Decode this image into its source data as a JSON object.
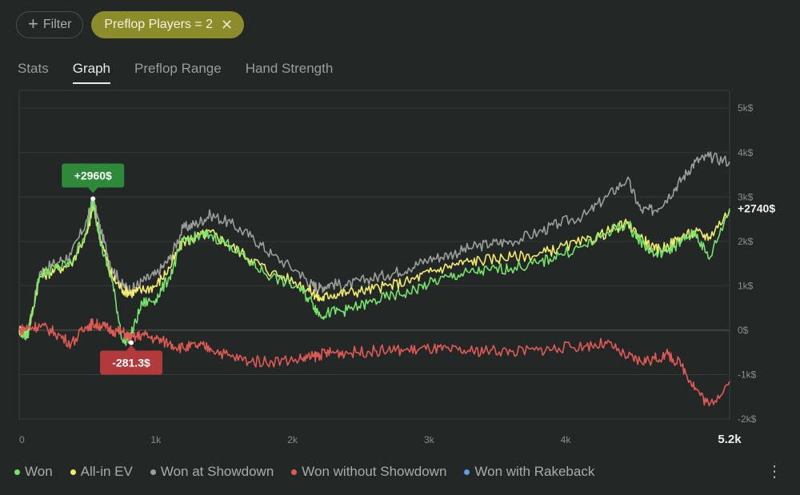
{
  "filters": {
    "filter_label": "Filter",
    "chip_label": "Preflop Players = 2"
  },
  "tabs": [
    {
      "label": "Stats",
      "active": false
    },
    {
      "label": "Graph",
      "active": true
    },
    {
      "label": "Preflop Range",
      "active": false
    },
    {
      "label": "Hand Strength",
      "active": false
    }
  ],
  "legend": [
    {
      "label": "Won",
      "color": "#76e36a"
    },
    {
      "label": "All-in EV",
      "color": "#f1ec6a"
    },
    {
      "label": "Won at Showdown",
      "color": "#9c9e9c"
    },
    {
      "label": "Won without Showdown",
      "color": "#e05a55"
    },
    {
      "label": "Won with Rakeback",
      "color": "#5aa0e0"
    }
  ],
  "chart_data": {
    "type": "line",
    "xlim": [
      0,
      5200
    ],
    "ylim": [
      -2000,
      5000
    ],
    "x_ticks": [
      {
        "v": 0,
        "label": "0"
      },
      {
        "v": 1000,
        "label": "1k"
      },
      {
        "v": 2000,
        "label": "2k"
      },
      {
        "v": 3000,
        "label": "3k"
      },
      {
        "v": 4000,
        "label": "4k"
      },
      {
        "v": 5200,
        "label": "5.2k"
      }
    ],
    "y_ticks": [
      {
        "v": 5000,
        "label": "5k$"
      },
      {
        "v": 4000,
        "label": "4k$"
      },
      {
        "v": 3000,
        "label": "3k$"
      },
      {
        "v": 2000,
        "label": "2k$"
      },
      {
        "v": 1000,
        "label": "1k$"
      },
      {
        "v": 0,
        "label": "0$"
      },
      {
        "v": -1000,
        "label": "-1k$"
      },
      {
        "v": -2000,
        "label": "-2k$"
      }
    ],
    "series": [
      {
        "name": "Won at Showdown",
        "color": "#9c9e9c",
        "x": [
          0,
          60,
          150,
          260,
          380,
          500,
          540,
          600,
          680,
          760,
          820,
          900,
          1000,
          1100,
          1200,
          1300,
          1400,
          1550,
          1700,
          1850,
          2050,
          2150,
          2200,
          2280,
          2400,
          2550,
          2700,
          2850,
          3000,
          3150,
          3300,
          3450,
          3600,
          3800,
          3950,
          4150,
          4300,
          4450,
          4550,
          4650,
          4750,
          4850,
          4950,
          5050,
          5200
        ],
        "y": [
          0,
          -150,
          1300,
          1500,
          1700,
          2500,
          2950,
          2200,
          1400,
          1000,
          900,
          1100,
          1250,
          1600,
          2300,
          2400,
          2600,
          2400,
          2100,
          1700,
          1300,
          1000,
          950,
          1050,
          1000,
          1150,
          1250,
          1400,
          1600,
          1700,
          1850,
          1950,
          2000,
          2200,
          2400,
          2600,
          3000,
          3400,
          2700,
          2700,
          3000,
          3400,
          3800,
          3900,
          3800
        ]
      },
      {
        "name": "All-in EV",
        "color": "#f1ec6a",
        "x": [
          0,
          60,
          150,
          260,
          380,
          500,
          540,
          600,
          680,
          760,
          820,
          900,
          1000,
          1100,
          1200,
          1300,
          1400,
          1550,
          1700,
          1850,
          2050,
          2150,
          2200,
          2280,
          2400,
          2550,
          2700,
          2850,
          3000,
          3150,
          3300,
          3450,
          3600,
          3800,
          3950,
          4150,
          4300,
          4450,
          4550,
          4650,
          4750,
          4850,
          4950,
          5050,
          5200
        ],
        "y": [
          0,
          -100,
          1200,
          1350,
          1500,
          2200,
          2800,
          2000,
          1200,
          900,
          850,
          900,
          1000,
          1400,
          2000,
          2100,
          2200,
          1900,
          1600,
          1300,
          1050,
          850,
          700,
          800,
          850,
          900,
          1000,
          1100,
          1300,
          1450,
          1550,
          1600,
          1650,
          1700,
          1850,
          2000,
          2200,
          2400,
          2100,
          1800,
          1900,
          2100,
          2200,
          2100,
          2700
        ]
      },
      {
        "name": "Won",
        "color": "#76e36a",
        "x": [
          0,
          60,
          150,
          260,
          380,
          500,
          540,
          600,
          680,
          760,
          820,
          900,
          1000,
          1100,
          1200,
          1300,
          1400,
          1550,
          1700,
          1850,
          2050,
          2150,
          2200,
          2280,
          2400,
          2550,
          2700,
          2850,
          3000,
          3150,
          3300,
          3450,
          3600,
          3800,
          3950,
          4150,
          4300,
          4450,
          4550,
          4650,
          4750,
          4850,
          4950,
          5050,
          5200
        ],
        "y": [
          0,
          -150,
          1250,
          1400,
          1500,
          2300,
          2960,
          1900,
          1100,
          -280,
          -100,
          600,
          700,
          1200,
          2000,
          2100,
          2150,
          1900,
          1500,
          1200,
          950,
          600,
          350,
          400,
          450,
          600,
          750,
          850,
          1050,
          1200,
          1300,
          1350,
          1400,
          1500,
          1700,
          1900,
          2200,
          2400,
          2000,
          1700,
          1800,
          2000,
          2200,
          1600,
          2740
        ]
      },
      {
        "name": "Won without Showdown",
        "color": "#e05a55",
        "x": [
          0,
          60,
          150,
          260,
          380,
          500,
          540,
          600,
          680,
          760,
          820,
          900,
          1000,
          1100,
          1200,
          1300,
          1400,
          1550,
          1700,
          1850,
          2050,
          2150,
          2200,
          2280,
          2400,
          2550,
          2700,
          2850,
          3000,
          3150,
          3300,
          3450,
          3600,
          3800,
          3950,
          4150,
          4300,
          4450,
          4550,
          4650,
          4750,
          4850,
          4950,
          5050,
          5200
        ],
        "y": [
          0,
          50,
          100,
          -50,
          -300,
          100,
          150,
          100,
          0,
          -50,
          -200,
          -100,
          -200,
          -300,
          -400,
          -350,
          -400,
          -600,
          -700,
          -700,
          -650,
          -600,
          -550,
          -500,
          -500,
          -480,
          -450,
          -450,
          -420,
          -450,
          -480,
          -450,
          -480,
          -450,
          -400,
          -350,
          -300,
          -600,
          -700,
          -650,
          -550,
          -800,
          -1300,
          -1700,
          -1150
        ]
      }
    ],
    "annotations": [
      {
        "label": "+2960$",
        "x": 540,
        "y": 2960,
        "color": "#2e8a3a",
        "position": "above"
      },
      {
        "label": "-281.3$",
        "x": 820,
        "y": -281.3,
        "color": "#b33a3a",
        "position": "below"
      }
    ],
    "end_label": {
      "label": "+2740$",
      "y": 2740
    }
  }
}
